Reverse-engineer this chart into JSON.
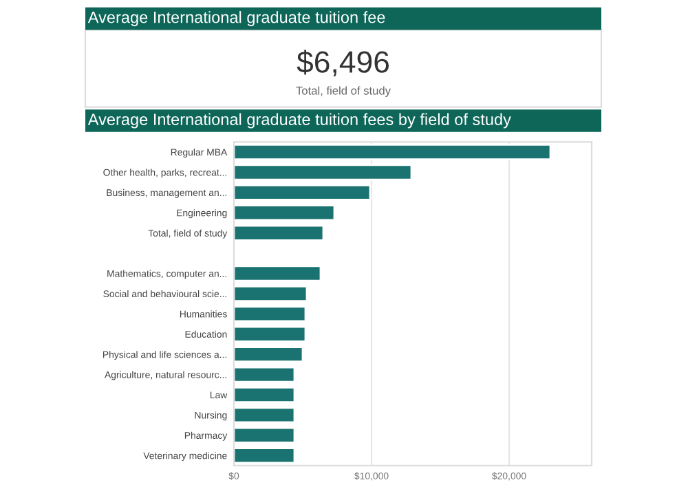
{
  "chart_data": [
    {
      "type": "other",
      "title": "Average International graduate tuition fee",
      "annotations": [
        "$6,496",
        "Total, field of study"
      ]
    },
    {
      "type": "bar",
      "orientation": "horizontal",
      "title": "Average International graduate tuition fees by field of study",
      "categories": [
        "Regular MBA",
        "Other health, parks, recreat...",
        "Business, management an...",
        "Engineering",
        "Total, field of study",
        null,
        "Mathematics, computer an...",
        "Social and behavioural scie...",
        "Humanities",
        "Education",
        "Physical and life sciences a...",
        "Agriculture, natural resourc...",
        "Law",
        "Nursing",
        "Pharmacy",
        "Veterinary medicine"
      ],
      "values": [
        23000,
        12900,
        9900,
        7300,
        6500,
        null,
        6300,
        5300,
        5200,
        5200,
        5000,
        4400,
        4400,
        4400,
        4400,
        4400
      ],
      "color": "#1a7370",
      "xlim": [
        0,
        26000
      ],
      "xticks": [
        {
          "value": 0,
          "label": "$0"
        },
        {
          "value": 10000,
          "label": "$10,000"
        },
        {
          "value": 20000,
          "label": "$20,000"
        }
      ],
      "grid": "x"
    }
  ]
}
